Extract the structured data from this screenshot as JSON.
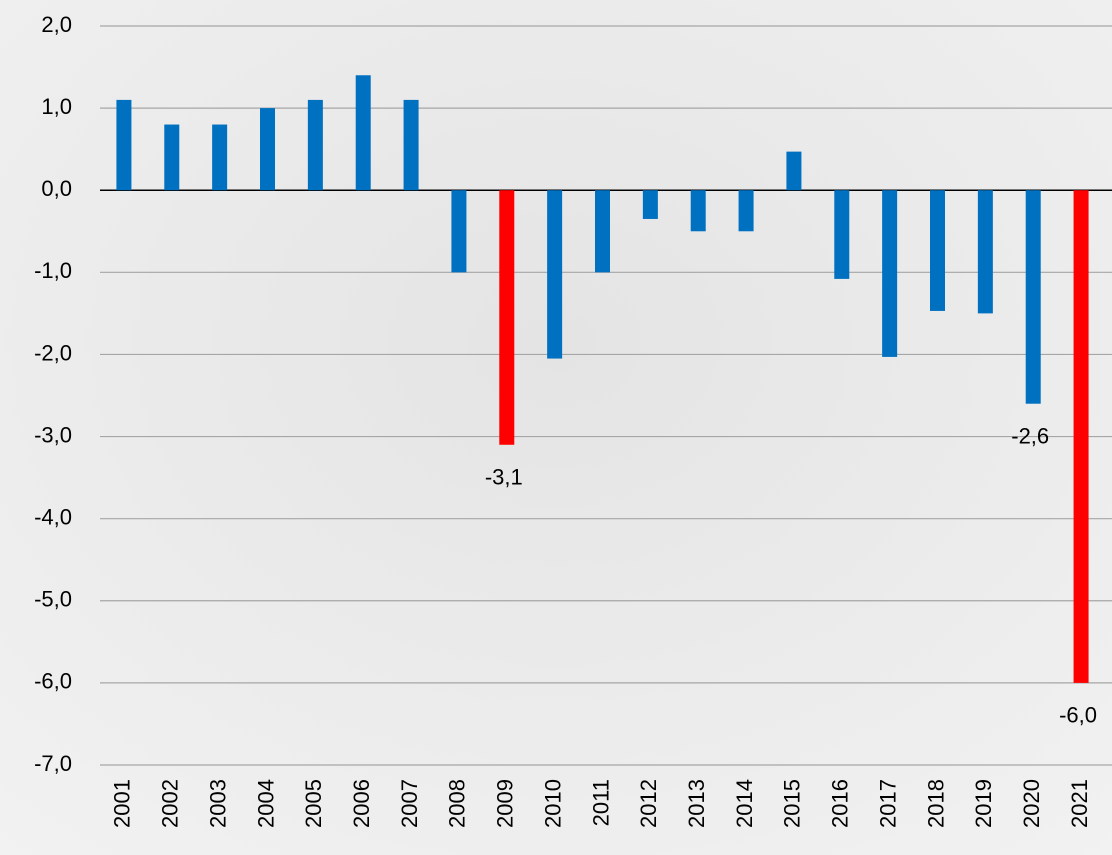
{
  "chart_data": {
    "type": "bar",
    "categories": [
      "2001",
      "2002",
      "2003",
      "2004",
      "2005",
      "2006",
      "2007",
      "2008",
      "2009",
      "2010",
      "2011",
      "2012",
      "2013",
      "2014",
      "2015",
      "2016",
      "2017",
      "2018",
      "2019",
      "2020",
      "2021"
    ],
    "values": [
      1.1,
      0.8,
      0.8,
      1.0,
      1.1,
      1.4,
      1.1,
      -1.0,
      -3.1,
      -2.05,
      -1.0,
      -0.35,
      -0.5,
      -0.5,
      0.47,
      -1.08,
      -2.03,
      -1.47,
      -1.5,
      -2.6,
      -6.0
    ],
    "value_labels": [
      null,
      null,
      null,
      null,
      null,
      null,
      null,
      null,
      "-3,1",
      null,
      null,
      null,
      null,
      null,
      null,
      null,
      null,
      null,
      null,
      "-2,6",
      "-6,0"
    ],
    "colors": [
      "#0070c0",
      "#0070c0",
      "#0070c0",
      "#0070c0",
      "#0070c0",
      "#0070c0",
      "#0070c0",
      "#0070c0",
      "#ff0000",
      "#0070c0",
      "#0070c0",
      "#0070c0",
      "#0070c0",
      "#0070c0",
      "#0070c0",
      "#0070c0",
      "#0070c0",
      "#0070c0",
      "#0070c0",
      "#0070c0",
      "#ff0000"
    ],
    "ylim": [
      -7,
      2
    ],
    "yticks": [
      {
        "value": 2,
        "label": "2,0"
      },
      {
        "value": 1,
        "label": "1,0"
      },
      {
        "value": 0,
        "label": "0,0"
      },
      {
        "value": -1,
        "label": "-1,0"
      },
      {
        "value": -2,
        "label": "-2,0"
      },
      {
        "value": -3,
        "label": "-3,0"
      },
      {
        "value": -4,
        "label": "-4,0"
      },
      {
        "value": -5,
        "label": "-5,0"
      },
      {
        "value": -6,
        "label": "-6,0"
      },
      {
        "value": -7,
        "label": "-7,0"
      }
    ],
    "grid": true
  }
}
